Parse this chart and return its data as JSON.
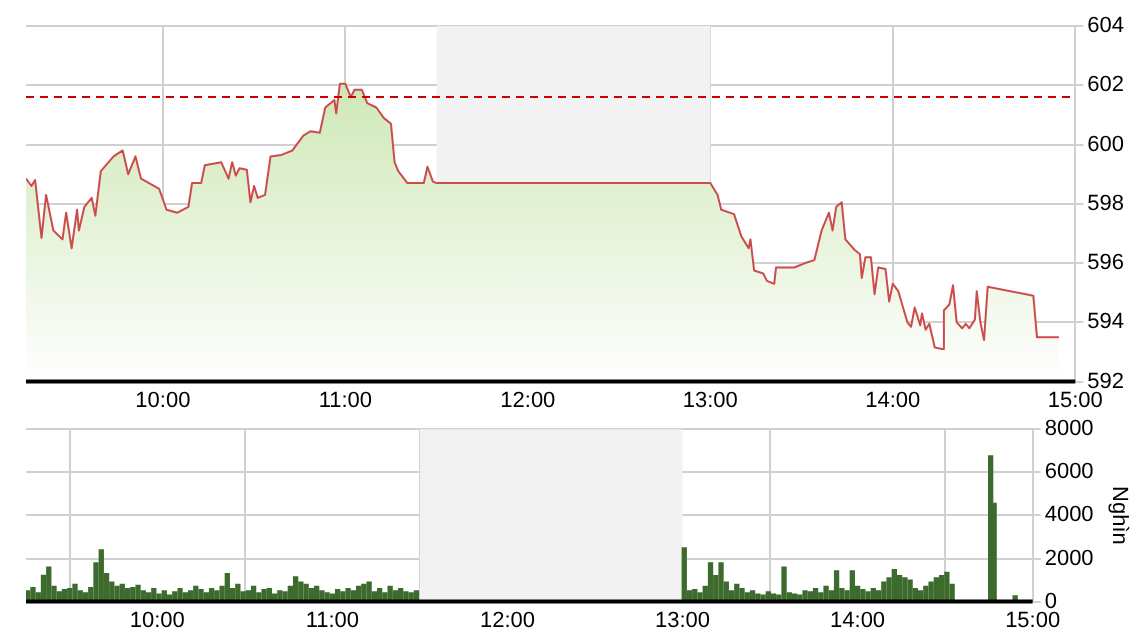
{
  "chart_data": [
    {
      "type": "area",
      "x": [
        9.25,
        9.28,
        9.3,
        9.335,
        9.36,
        9.4,
        9.45,
        9.47,
        9.5,
        9.53,
        9.54,
        9.57,
        9.61,
        9.63,
        9.66,
        9.73,
        9.78,
        9.81,
        9.85,
        9.88,
        9.98,
        10.02,
        10.08,
        10.14,
        10.16,
        10.21,
        10.23,
        10.32,
        10.36,
        10.38,
        10.4,
        10.42,
        10.46,
        10.48,
        10.5,
        10.52,
        10.56,
        10.59,
        10.65,
        10.71,
        10.77,
        10.81,
        10.86,
        10.89,
        10.94,
        10.95,
        10.97,
        11.0,
        11.03,
        11.05,
        11.09,
        11.12,
        11.17,
        11.21,
        11.25,
        11.27,
        11.29,
        11.34,
        11.43,
        11.45,
        11.48,
        11.5,
        13.0,
        13.04,
        13.06,
        13.13,
        13.17,
        13.21,
        13.22,
        13.24,
        13.29,
        13.31,
        13.35,
        13.36,
        13.42,
        13.46,
        13.52,
        13.57,
        13.61,
        13.65,
        13.67,
        13.69,
        13.72,
        13.74,
        13.79,
        13.82,
        13.83,
        13.85,
        13.88,
        13.9,
        13.92,
        13.96,
        13.98,
        14.0,
        14.03,
        14.08,
        14.1,
        14.12,
        14.15,
        14.16,
        14.18,
        14.2,
        14.23,
        14.27,
        14.28,
        14.31,
        14.33,
        14.35,
        14.38,
        14.4,
        14.42,
        14.45,
        14.46,
        14.48,
        14.5,
        14.52,
        14.77,
        14.79,
        14.91
      ],
      "series": [
        {
          "color": "#c5e3a8",
          "values": [
            598.85,
            598.6,
            598.8,
            596.85,
            598.3,
            597.1,
            596.8,
            597.7,
            596.5,
            597.8,
            597.1,
            597.9,
            598.2,
            597.6,
            599.1,
            599.6,
            599.8,
            599.0,
            599.6,
            598.85,
            598.5,
            597.8,
            597.7,
            597.9,
            598.7,
            598.7,
            599.3,
            599.4,
            598.85,
            599.4,
            598.95,
            599.2,
            599.15,
            598.05,
            598.6,
            598.2,
            598.3,
            599.6,
            599.65,
            599.8,
            600.3,
            600.45,
            600.4,
            601.25,
            601.5,
            601.05,
            602.05,
            602.05,
            601.6,
            601.85,
            601.85,
            601.4,
            601.25,
            600.9,
            600.7,
            599.4,
            599.1,
            598.7,
            598.7,
            599.25,
            598.75,
            598.7,
            598.7,
            598.3,
            597.8,
            597.65,
            596.9,
            596.5,
            596.8,
            595.75,
            595.65,
            595.4,
            595.3,
            595.85,
            595.85,
            595.85,
            596.0,
            596.1,
            597.1,
            597.7,
            597.1,
            597.9,
            598.05,
            596.8,
            596.45,
            596.3,
            595.5,
            596.2,
            596.2,
            594.95,
            595.85,
            595.8,
            594.7,
            595.3,
            595.05,
            594.0,
            593.85,
            594.5,
            593.9,
            594.3,
            593.75,
            593.95,
            593.15,
            593.1,
            594.4,
            594.6,
            595.25,
            594.0,
            593.8,
            593.95,
            593.8,
            594.1,
            595.05,
            594.0,
            593.4,
            595.2,
            594.9,
            593.5,
            593.5
          ]
        }
      ],
      "xlim": [
        9.25,
        15
      ],
      "xticks": [
        {
          "value": 10,
          "label": "10:00"
        },
        {
          "value": 11,
          "label": "11:00"
        },
        {
          "value": 12,
          "label": "12:00"
        },
        {
          "value": 13,
          "label": "13:00"
        },
        {
          "value": 14,
          "label": "14:00"
        },
        {
          "value": 15,
          "label": "15:00"
        }
      ],
      "ylim": [
        592,
        604
      ],
      "yticks": [
        592,
        594,
        596,
        598,
        600,
        602,
        604
      ],
      "ref_lines": [
        {
          "axis": "y",
          "value": 601.6,
          "color": "#cc0000",
          "line_style": "dashed"
        }
      ],
      "bands": [
        {
          "axis": "x",
          "from": 11.5,
          "to": 13,
          "color": "#f2f2f2"
        }
      ],
      "grid": true,
      "legend": false
    },
    {
      "type": "bar",
      "x": [
        9.26,
        9.29,
        9.32,
        9.35,
        9.38,
        9.41,
        9.44,
        9.47,
        9.5,
        9.53,
        9.56,
        9.59,
        9.62,
        9.65,
        9.68,
        9.71,
        9.74,
        9.77,
        9.8,
        9.83,
        9.86,
        9.89,
        9.92,
        9.95,
        9.98,
        10.01,
        10.04,
        10.07,
        10.1,
        10.13,
        10.16,
        10.19,
        10.22,
        10.25,
        10.28,
        10.31,
        10.34,
        10.37,
        10.4,
        10.43,
        10.46,
        10.49,
        10.52,
        10.55,
        10.58,
        10.61,
        10.64,
        10.67,
        10.7,
        10.73,
        10.76,
        10.79,
        10.82,
        10.85,
        10.88,
        10.91,
        10.94,
        10.97,
        11.0,
        11.03,
        11.06,
        11.09,
        11.12,
        11.15,
        11.18,
        11.21,
        11.24,
        11.27,
        11.3,
        11.33,
        11.36,
        11.39,
        11.42,
        11.45,
        11.48,
        13.01,
        13.04,
        13.07,
        13.1,
        13.13,
        13.16,
        13.19,
        13.22,
        13.25,
        13.28,
        13.31,
        13.34,
        13.37,
        13.4,
        13.43,
        13.46,
        13.49,
        13.52,
        13.55,
        13.58,
        13.61,
        13.64,
        13.67,
        13.7,
        13.73,
        13.76,
        13.79,
        13.82,
        13.85,
        13.88,
        13.91,
        13.94,
        13.97,
        14.0,
        14.03,
        14.06,
        14.09,
        14.12,
        14.15,
        14.18,
        14.21,
        14.24,
        14.27,
        14.3,
        14.33,
        14.36,
        14.39,
        14.42,
        14.45,
        14.48,
        14.51,
        14.54,
        14.76,
        14.78,
        14.9
      ],
      "series": [
        {
          "color": "#3d6b2d",
          "values": [
            500,
            650,
            400,
            1210,
            1600,
            700,
            450,
            550,
            600,
            800,
            500,
            400,
            650,
            1790,
            2400,
            1300,
            900,
            700,
            800,
            600,
            650,
            750,
            500,
            400,
            600,
            350,
            500,
            300,
            450,
            600,
            400,
            500,
            700,
            550,
            400,
            600,
            500,
            700,
            1300,
            600,
            800,
            450,
            500,
            700,
            400,
            550,
            600,
            350,
            500,
            450,
            700,
            1150,
            900,
            800,
            600,
            700,
            500,
            400,
            350,
            550,
            450,
            600,
            500,
            700,
            800,
            900,
            450,
            600,
            400,
            700,
            500,
            600,
            450,
            400,
            500,
            2490,
            500,
            550,
            400,
            700,
            1790,
            1200,
            1790,
            900,
            500,
            800,
            600,
            400,
            500,
            350,
            300,
            450,
            350,
            300,
            1600,
            400,
            350,
            300,
            500,
            450,
            600,
            400,
            700,
            500,
            1420,
            600,
            500,
            1420,
            700,
            550,
            450,
            600,
            500,
            900,
            1100,
            1480,
            1200,
            1100,
            1000,
            600,
            500,
            700,
            900,
            1100,
            1200,
            1350,
            800,
            6760,
            4560,
            260
          ]
        }
      ],
      "xlim": [
        9.25,
        15
      ],
      "xticks": [
        {
          "value": 10,
          "label": "10:00"
        },
        {
          "value": 11,
          "label": "11:00"
        },
        {
          "value": 12,
          "label": "12:00"
        },
        {
          "value": 13,
          "label": "13:00"
        },
        {
          "value": 14,
          "label": "14:00"
        },
        {
          "value": 15,
          "label": "15:00"
        }
      ],
      "ylim": [
        0,
        8000
      ],
      "yticks": [
        0,
        2000,
        4000,
        6000,
        8000
      ],
      "ylabel": "Nghìn",
      "bands": [
        {
          "axis": "x",
          "from": 11.5,
          "to": 13,
          "color": "#f2f2f2"
        }
      ],
      "grid": true,
      "legend": false
    }
  ]
}
